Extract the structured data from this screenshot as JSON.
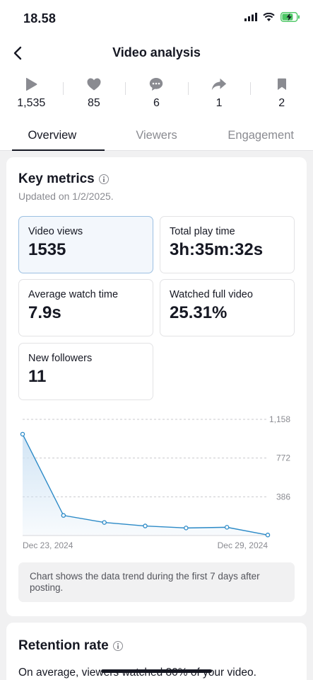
{
  "status": {
    "time": "18.58"
  },
  "nav": {
    "title": "Video analysis"
  },
  "stats": [
    {
      "icon": "play-icon",
      "value": "1,535"
    },
    {
      "icon": "heart-icon",
      "value": "85"
    },
    {
      "icon": "comment-icon",
      "value": "6"
    },
    {
      "icon": "share-icon",
      "value": "1"
    },
    {
      "icon": "bookmark-icon",
      "value": "2"
    }
  ],
  "tabs": [
    "Overview",
    "Viewers",
    "Engagement"
  ],
  "key_metrics": {
    "title": "Key metrics",
    "updated": "Updated on 1/2/2025.",
    "tiles": [
      {
        "label": "Video views",
        "value": "1535"
      },
      {
        "label": "Total play time",
        "value": "3h:35m:32s"
      },
      {
        "label": "Average watch time",
        "value": "7.9s"
      },
      {
        "label": "Watched full video",
        "value": "25.31%"
      },
      {
        "label": "New followers",
        "value": "11"
      }
    ],
    "note": "Chart shows the data trend during the first 7 days after posting."
  },
  "chart_data": {
    "type": "area",
    "x": [
      "Dec 23, 2024",
      "Dec 24, 2024",
      "Dec 25, 2024",
      "Dec 26, 2024",
      "Dec 27, 2024",
      "Dec 28, 2024",
      "Dec 29, 2024"
    ],
    "values": [
      1010,
      200,
      130,
      95,
      75,
      82,
      5
    ],
    "x_tick_labels": [
      "Dec 23, 2024",
      "Dec 29, 2024"
    ],
    "y_ticks": [
      "1,158",
      "772",
      "386"
    ],
    "ylim": [
      0,
      1158
    ],
    "grid": true,
    "colors": {
      "line": "#2c8ac7",
      "fill": "#cfe3f4"
    }
  },
  "retention": {
    "title": "Retention rate",
    "average_text": "On average, viewers watched 80% of your video."
  },
  "colors": {
    "accent": "#2c8ac7",
    "selected_border": "#9cc0e2"
  }
}
